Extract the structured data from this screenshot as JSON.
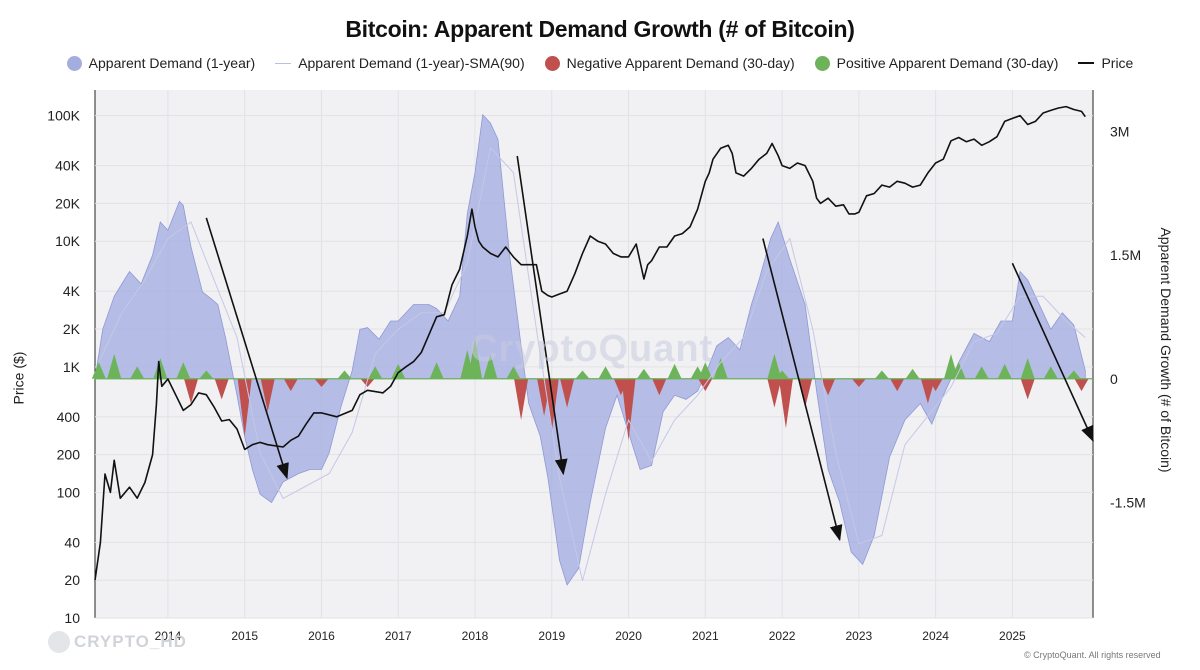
{
  "chart_data": {
    "type": "area",
    "title": "Bitcoin: Apparent Demand Growth (# of Bitcoin)",
    "legend": [
      {
        "name": "Apparent Demand (1-year)",
        "color": "#a4ade0",
        "marker": "dot"
      },
      {
        "name": "Apparent Demand (1-year)-SMA(90)",
        "color": "#c4c8e6",
        "marker": "thin-line"
      },
      {
        "name": "Negative Apparent Demand (30-day)",
        "color": "#c0504d",
        "marker": "dot"
      },
      {
        "name": "Positive Apparent Demand (30-day)",
        "color": "#6db35a",
        "marker": "dot"
      },
      {
        "name": "Price",
        "color": "#111111",
        "marker": "line"
      }
    ],
    "legend_position": "top",
    "ylabel_left": "Price ($)",
    "ylabel_right": "Apparent Demand Growth (# of Bitcoin)",
    "y_left_scale": "log",
    "y_left_ticks": [
      "10",
      "20",
      "40",
      "100",
      "200",
      "400",
      "1K",
      "2K",
      "4K",
      "10K",
      "20K",
      "40K",
      "100K"
    ],
    "y_left_tick_values": [
      10,
      20,
      40,
      100,
      200,
      400,
      1000,
      2000,
      4000,
      10000,
      20000,
      40000,
      100000
    ],
    "y_left_range": [
      10,
      160000
    ],
    "y_right_ticks": [
      "3M",
      "1.5M",
      "0",
      "-1.5M"
    ],
    "y_right_tick_values": [
      3000000,
      1500000,
      0,
      -1500000
    ],
    "y_right_range": [
      -2900000,
      3500000
    ],
    "x_ticks": [
      "2014",
      "2015",
      "2016",
      "2017",
      "2018",
      "2019",
      "2020",
      "2021",
      "2022",
      "2023",
      "2024",
      "2025"
    ],
    "x_tick_values": [
      2014,
      2015,
      2016,
      2017,
      2018,
      2019,
      2020,
      2021,
      2022,
      2023,
      2024,
      2025
    ],
    "x_range": [
      2013.05,
      2026.05
    ],
    "grid": true,
    "series": [
      {
        "name": "Price",
        "x": [
          2013.05,
          2013.12,
          2013.18,
          2013.25,
          2013.3,
          2013.38,
          2013.5,
          2013.6,
          2013.7,
          2013.8,
          2013.85,
          2013.88,
          2013.92,
          2014.0,
          2014.1,
          2014.2,
          2014.3,
          2014.4,
          2014.5,
          2014.6,
          2014.7,
          2014.8,
          2014.9,
          2015.0,
          2015.1,
          2015.2,
          2015.3,
          2015.5,
          2015.6,
          2015.7,
          2015.8,
          2015.9,
          2016.0,
          2016.2,
          2016.4,
          2016.5,
          2016.6,
          2016.8,
          2016.9,
          2017.0,
          2017.1,
          2017.2,
          2017.3,
          2017.4,
          2017.5,
          2017.6,
          2017.7,
          2017.8,
          2017.9,
          2017.96,
          2018.0,
          2018.05,
          2018.1,
          2018.2,
          2018.3,
          2018.4,
          2018.5,
          2018.6,
          2018.7,
          2018.8,
          2018.87,
          2018.95,
          2019.0,
          2019.1,
          2019.2,
          2019.3,
          2019.4,
          2019.5,
          2019.6,
          2019.7,
          2019.8,
          2019.9,
          2020.0,
          2020.1,
          2020.2,
          2020.25,
          2020.3,
          2020.4,
          2020.5,
          2020.6,
          2020.7,
          2020.8,
          2020.9,
          2021.0,
          2021.05,
          2021.1,
          2021.2,
          2021.3,
          2021.35,
          2021.4,
          2021.5,
          2021.6,
          2021.7,
          2021.8,
          2021.87,
          2021.95,
          2022.0,
          2022.1,
          2022.2,
          2022.3,
          2022.4,
          2022.45,
          2022.5,
          2022.6,
          2022.7,
          2022.8,
          2022.87,
          2022.95,
          2023.0,
          2023.1,
          2023.2,
          2023.3,
          2023.4,
          2023.5,
          2023.6,
          2023.7,
          2023.8,
          2023.9,
          2024.0,
          2024.1,
          2024.2,
          2024.3,
          2024.4,
          2024.5,
          2024.6,
          2024.7,
          2024.8,
          2024.9,
          2025.0,
          2025.1,
          2025.2,
          2025.3,
          2025.4,
          2025.5,
          2025.6,
          2025.7,
          2025.8,
          2025.9,
          2025.95
        ],
        "values": [
          20,
          40,
          140,
          100,
          180,
          90,
          110,
          90,
          120,
          200,
          500,
          1100,
          700,
          800,
          600,
          450,
          500,
          620,
          600,
          480,
          370,
          380,
          320,
          220,
          240,
          250,
          240,
          230,
          260,
          280,
          350,
          430,
          430,
          400,
          450,
          600,
          650,
          620,
          700,
          900,
          1000,
          1100,
          1300,
          1800,
          2500,
          2600,
          4500,
          6000,
          11000,
          18000,
          13000,
          10000,
          9000,
          8000,
          7500,
          9000,
          7500,
          6500,
          6500,
          6500,
          4000,
          3700,
          3600,
          3800,
          4000,
          5500,
          8000,
          11000,
          10000,
          9500,
          8000,
          7500,
          7500,
          9500,
          5000,
          6500,
          7000,
          9000,
          9000,
          11000,
          11500,
          13000,
          18000,
          30000,
          35000,
          45000,
          55000,
          58000,
          50000,
          35000,
          33000,
          38000,
          45000,
          50000,
          60000,
          48000,
          40000,
          38000,
          42000,
          40000,
          30000,
          22000,
          20000,
          22000,
          19000,
          19500,
          16500,
          16500,
          17000,
          23000,
          24000,
          28000,
          27000,
          30000,
          29000,
          27000,
          28000,
          35000,
          42000,
          45000,
          63000,
          67000,
          62000,
          65000,
          58000,
          62000,
          68000,
          90000,
          95000,
          100000,
          85000,
          90000,
          105000,
          110000,
          115000,
          118000,
          112000,
          108000,
          98000
        ]
      },
      {
        "name": "Apparent Demand (1-year)",
        "x": [
          2013.05,
          2013.15,
          2013.3,
          2013.5,
          2013.65,
          2013.8,
          2013.9,
          2014.0,
          2014.15,
          2014.2,
          2014.3,
          2014.45,
          2014.55,
          2014.65,
          2014.75,
          2014.9,
          2015.0,
          2015.1,
          2015.2,
          2015.35,
          2015.5,
          2015.7,
          2015.85,
          2016.0,
          2016.1,
          2016.25,
          2016.4,
          2016.5,
          2016.6,
          2016.75,
          2016.9,
          2017.0,
          2017.2,
          2017.4,
          2017.5,
          2017.65,
          2017.8,
          2017.9,
          2018.0,
          2018.1,
          2018.2,
          2018.3,
          2018.45,
          2018.6,
          2018.7,
          2018.85,
          2018.95,
          2019.1,
          2019.2,
          2019.35,
          2019.5,
          2019.7,
          2019.85,
          2020.0,
          2020.15,
          2020.3,
          2020.45,
          2020.6,
          2020.75,
          2020.9,
          2021.0,
          2021.15,
          2021.3,
          2021.45,
          2021.6,
          2021.7,
          2021.85,
          2021.95,
          2022.1,
          2022.3,
          2022.45,
          2022.6,
          2022.75,
          2022.9,
          2023.05,
          2023.2,
          2023.4,
          2023.6,
          2023.8,
          2023.95,
          2024.1,
          2024.3,
          2024.5,
          2024.7,
          2024.85,
          2025.0,
          2025.1,
          2025.2,
          2025.35,
          2025.5,
          2025.65,
          2025.8,
          2025.95
        ],
        "values": [
          0,
          600000,
          1000000,
          1300000,
          1150000,
          1500000,
          1900000,
          1800000,
          2150000,
          2100000,
          1600000,
          1050000,
          980000,
          900000,
          500000,
          -200000,
          -700000,
          -1100000,
          -1400000,
          -1500000,
          -1250000,
          -1150000,
          -1100000,
          -1100000,
          -900000,
          -350000,
          100000,
          600000,
          620000,
          480000,
          700000,
          700000,
          900000,
          900000,
          850000,
          700000,
          1000000,
          2000000,
          2500000,
          3200000,
          3100000,
          2900000,
          1500000,
          400000,
          -300000,
          -700000,
          -1200000,
          -2200000,
          -2500000,
          -2300000,
          -1500000,
          -600000,
          -200000,
          -650000,
          -1100000,
          -1050000,
          -400000,
          -200000,
          -250000,
          -150000,
          50000,
          400000,
          500000,
          350000,
          900000,
          1200000,
          1700000,
          1900000,
          1450000,
          900000,
          -150000,
          -1100000,
          -1500000,
          -2100000,
          -2250000,
          -1900000,
          -950000,
          -500000,
          -300000,
          -550000,
          -200000,
          200000,
          550000,
          450000,
          700000,
          700000,
          1300000,
          1200000,
          900000,
          600000,
          800000,
          650000,
          100000
        ]
      },
      {
        "name": "Apparent Demand (1-year)-SMA(90)",
        "x": [
          2013.1,
          2013.4,
          2013.7,
          2014.0,
          2014.3,
          2014.6,
          2014.9,
          2015.2,
          2015.5,
          2015.8,
          2016.1,
          2016.4,
          2016.7,
          2017.0,
          2017.3,
          2017.6,
          2017.9,
          2018.2,
          2018.5,
          2018.8,
          2019.1,
          2019.4,
          2019.7,
          2020.0,
          2020.3,
          2020.6,
          2020.9,
          2021.2,
          2021.5,
          2021.8,
          2022.1,
          2022.4,
          2022.7,
          2023.0,
          2023.3,
          2023.6,
          2023.9,
          2024.2,
          2024.5,
          2024.8,
          2025.1,
          2025.4,
          2025.7,
          2025.95
        ],
        "values": [
          200000,
          800000,
          1200000,
          1700000,
          1900000,
          1200000,
          500000,
          -900000,
          -1450000,
          -1300000,
          -1150000,
          -650000,
          300000,
          600000,
          800000,
          800000,
          1400000,
          2800000,
          2500000,
          600000,
          -1200000,
          -2450000,
          -1400000,
          -500000,
          -1000000,
          -500000,
          -200000,
          200000,
          500000,
          1300000,
          1700000,
          600000,
          -900000,
          -2000000,
          -1900000,
          -800000,
          -450000,
          -100000,
          450000,
          550000,
          1000000,
          1000000,
          700000,
          500000
        ]
      },
      {
        "name": "Positive Apparent Demand (30-day)",
        "x": [
          2013.1,
          2013.3,
          2013.6,
          2013.9,
          2014.2,
          2014.5,
          2016.3,
          2016.7,
          2017.0,
          2017.5,
          2017.9,
          2018.0,
          2018.2,
          2018.5,
          2019.4,
          2019.7,
          2020.2,
          2020.6,
          2020.9,
          2021.0,
          2021.2,
          2021.9,
          2022.0,
          2023.3,
          2023.7,
          2024.2,
          2024.3,
          2024.6,
          2024.9,
          2025.2,
          2025.5,
          2025.8
        ],
        "values": [
          200000,
          300000,
          150000,
          250000,
          200000,
          100000,
          100000,
          150000,
          180000,
          200000,
          350000,
          500000,
          300000,
          150000,
          100000,
          150000,
          120000,
          180000,
          150000,
          200000,
          250000,
          300000,
          100000,
          100000,
          120000,
          300000,
          200000,
          150000,
          180000,
          250000,
          150000,
          100000
        ]
      },
      {
        "name": "Negative Apparent Demand (30-day)",
        "x": [
          2014.3,
          2014.7,
          2015.0,
          2015.3,
          2015.6,
          2016.0,
          2016.6,
          2018.6,
          2018.9,
          2019.0,
          2019.2,
          2019.9,
          2020.0,
          2020.4,
          2021.0,
          2021.9,
          2022.05,
          2022.3,
          2022.6,
          2023.0,
          2023.5,
          2023.9,
          2024.0,
          2025.2,
          2025.9
        ],
        "values": [
          -300000,
          -250000,
          -700000,
          -400000,
          -150000,
          -100000,
          -100000,
          -500000,
          -450000,
          -650000,
          -350000,
          -200000,
          -750000,
          -200000,
          -150000,
          -350000,
          -600000,
          -350000,
          -200000,
          -100000,
          -150000,
          -300000,
          -150000,
          -250000,
          -150000
        ]
      }
    ],
    "annotations": [
      {
        "type": "arrow",
        "from": [
          2014.5,
          1950000
        ],
        "to": [
          2015.55,
          -1200000
        ]
      },
      {
        "type": "arrow",
        "from": [
          2018.55,
          2700000
        ],
        "to": [
          2019.15,
          -1150000
        ]
      },
      {
        "type": "arrow",
        "from": [
          2021.75,
          1700000
        ],
        "to": [
          2022.75,
          -1950000
        ]
      },
      {
        "type": "arrow",
        "from": [
          2025.0,
          1400000
        ],
        "to": [
          2026.05,
          -750000
        ]
      }
    ]
  },
  "watermark": "CryptoQuant",
  "footer": {
    "source_tag": "CRYPTO_HD",
    "copyright": "© CryptoQuant. All rights reserved"
  }
}
